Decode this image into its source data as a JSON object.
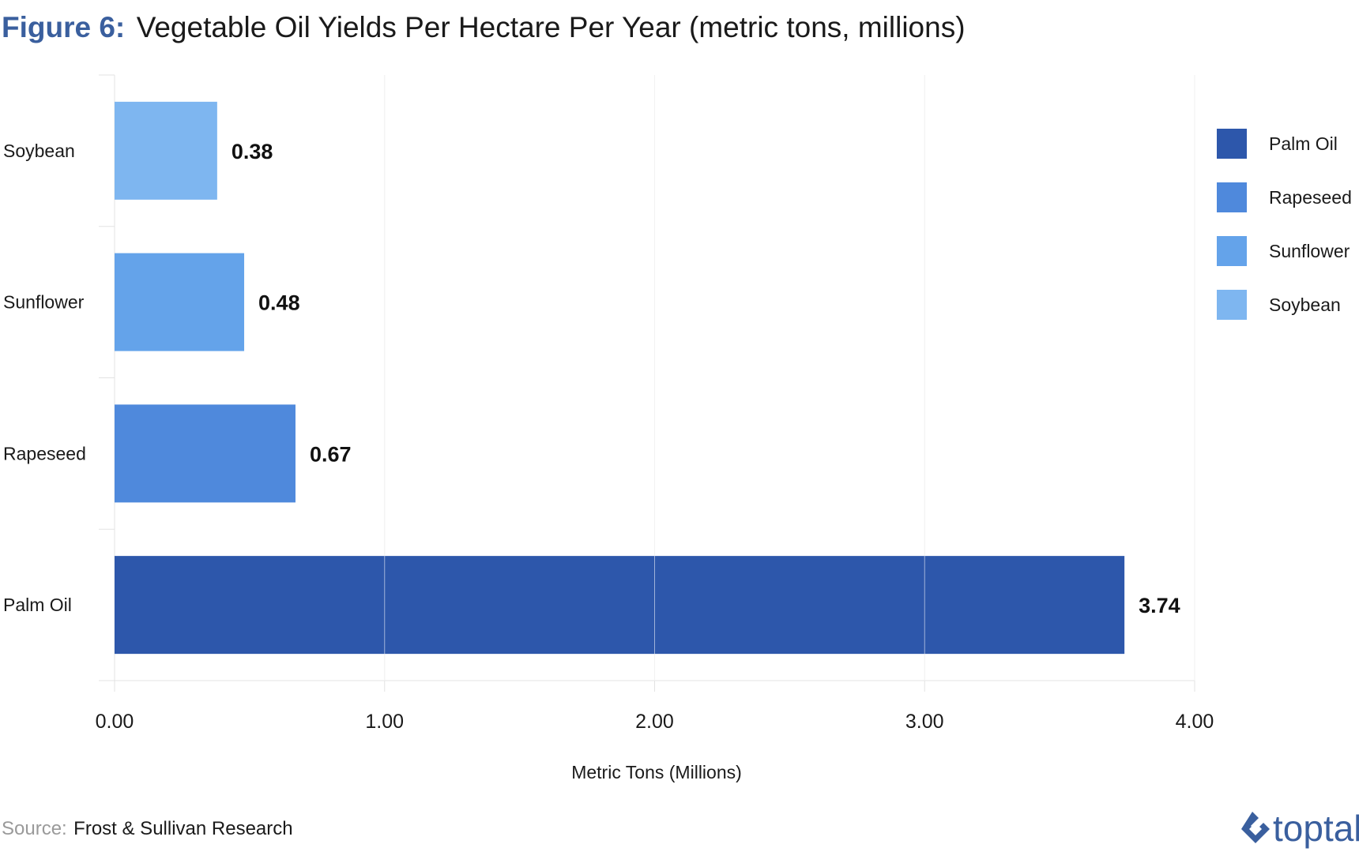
{
  "title": {
    "figure_label": "Figure 6:",
    "text": "Vegetable Oil Yields Per Hectare Per Year (metric tons, millions)"
  },
  "source": {
    "prefix": "Source:",
    "text": "Frost & Sullivan Research"
  },
  "brand": {
    "name": "toptal",
    "icon": "toptal-logo-icon"
  },
  "chart_data": {
    "type": "bar",
    "orientation": "horizontal",
    "categories": [
      "Soybean",
      "Sunflower",
      "Rapeseed",
      "Palm Oil"
    ],
    "values": [
      0.38,
      0.48,
      0.67,
      3.74
    ],
    "value_labels": [
      "0.38",
      "0.48",
      "0.67",
      "3.74"
    ],
    "colors": [
      "#7eb6f0",
      "#64a3ea",
      "#4f89dc",
      "#2d57ab"
    ],
    "xlabel": "Metric Tons (Millions)",
    "ylabel": "",
    "xlim": [
      0,
      4
    ],
    "xticks": [
      "0.00",
      "1.00",
      "2.00",
      "3.00",
      "4.00"
    ],
    "grid": true,
    "legend": {
      "position": "right",
      "items": [
        {
          "label": "Palm Oil",
          "color": "#2d57ab"
        },
        {
          "label": "Rapeseed",
          "color": "#4f89dc"
        },
        {
          "label": "Sunflower",
          "color": "#64a3ea"
        },
        {
          "label": "Soybean",
          "color": "#7eb6f0"
        }
      ]
    }
  }
}
